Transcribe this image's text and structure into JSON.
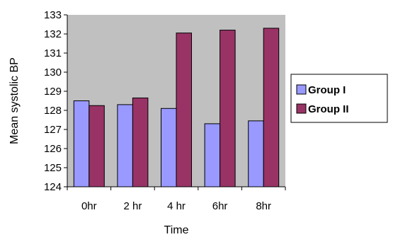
{
  "chart_data": {
    "type": "bar",
    "categories": [
      "0hr",
      "2 hr",
      "4 hr",
      "6hr",
      "8hr"
    ],
    "series": [
      {
        "name": "Group I",
        "values": [
          128.5,
          128.3,
          128.1,
          127.3,
          127.45
        ],
        "color": "#9999ff"
      },
      {
        "name": "Group II",
        "values": [
          128.25,
          128.65,
          132.05,
          132.2,
          132.3
        ],
        "color": "#993366"
      }
    ],
    "title": "",
    "xlabel": "Time",
    "ylabel": "Mean systolic BP",
    "ylim": [
      124,
      133
    ],
    "yticks": [
      "124",
      "125",
      "126",
      "127",
      "128",
      "129",
      "130",
      "131",
      "132",
      "133"
    ],
    "grid": false,
    "plot_background": "#c0c0c0",
    "legend_position": "right"
  }
}
